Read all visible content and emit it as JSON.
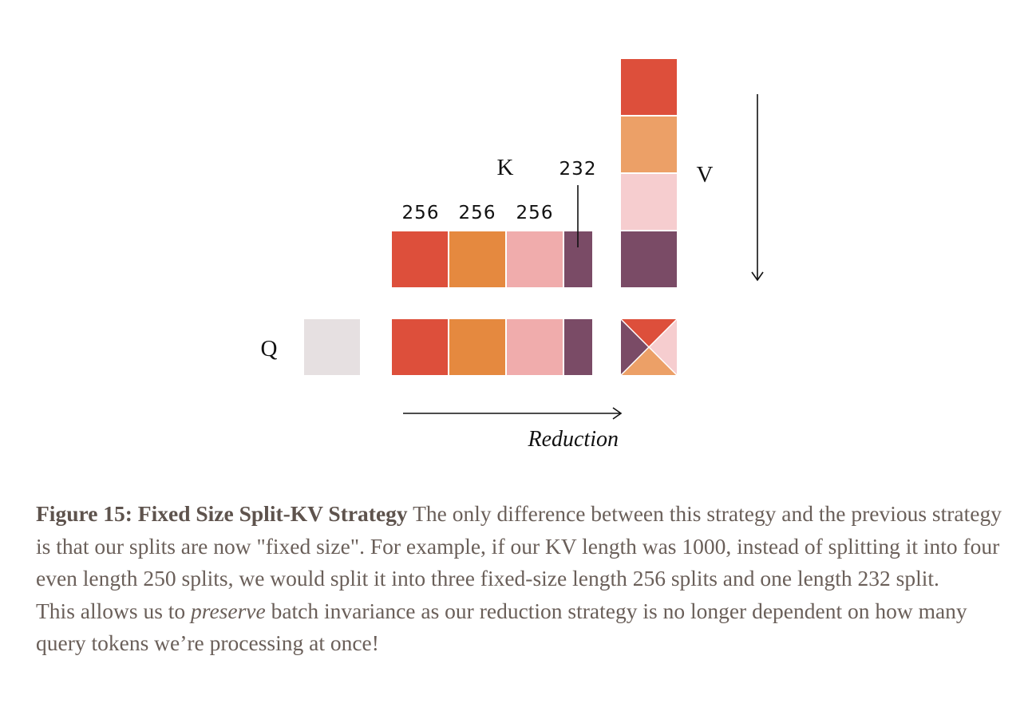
{
  "diagram": {
    "q_label": "Q",
    "k_label": "K",
    "v_label": "V",
    "reduction_label": "Reduction",
    "split_sizes": [
      "256",
      "256",
      "256",
      "232"
    ],
    "colors": {
      "red": "#dd4f3b",
      "orange": "#e5893f",
      "v_orange": "#eca067",
      "pink": "#f0acac",
      "light_pink": "#f6cdcf",
      "purple": "#7a4b66",
      "q_gray": "#e6e0e1"
    }
  },
  "caption": {
    "figure_title": "Figure 15: Fixed Size Split-KV Strategy",
    "line1_rest": " The only difference between this strategy and the previous strategy is that our splits are now \"fixed size\". For example, if our KV length was 1000, instead of splitting it into four even length 250 splits, we would split it into three fixed-size length 256 splits and one length 232 split.",
    "line2_before": "This allows us to ",
    "line2_em": "preserve",
    "line2_after": " batch invariance as our reduction strategy is no longer dependent on how many query tokens we’re processing at once!"
  }
}
